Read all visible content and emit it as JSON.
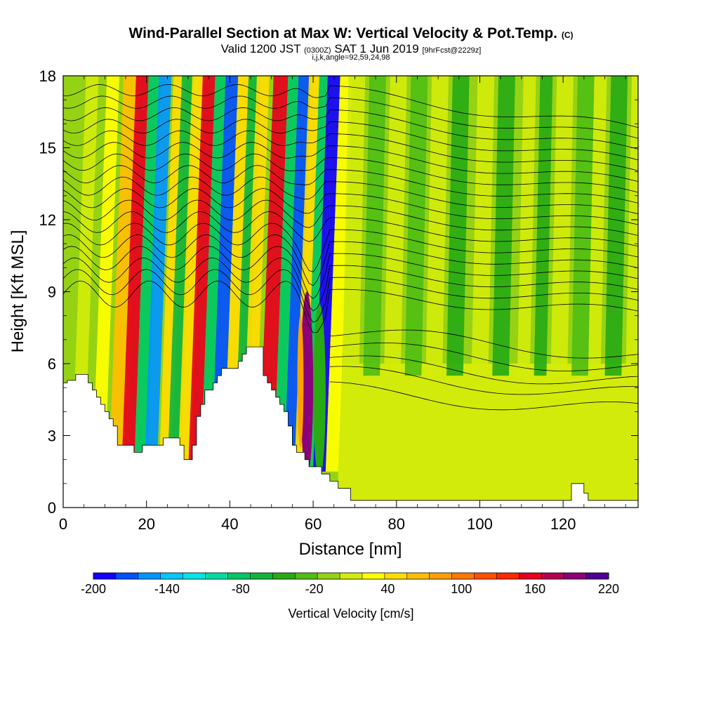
{
  "header": {
    "title": "Wind-Parallel Section at Max W: Vertical Velocity & Pot.Temp.",
    "title_mark": "(C)",
    "valid_prefix": "Valid 1200 JST",
    "valid_z": "(0300Z)",
    "valid_date": "SAT 1 Jun 2019",
    "forecast": "[9hrFcst@2229z]",
    "indices": "i,j,k,angle=92,59,24,98"
  },
  "chart_data": {
    "type": "heatmap",
    "xlabel": "Distance [nm]",
    "ylabel": "Height [Kft MSL]",
    "xlim": [
      0,
      138
    ],
    "ylim": [
      0,
      18
    ],
    "x_ticks": [
      "0",
      "20",
      "40",
      "60",
      "80",
      "100",
      "120"
    ],
    "y_ticks": [
      "0",
      "3",
      "6",
      "9",
      "12",
      "15",
      "18"
    ],
    "grid": false,
    "colorbar": {
      "title": "Vertical Velocity [cm/s]",
      "min": -200,
      "max": 220,
      "step": 20,
      "labels": [
        "-200",
        "-140",
        "-80",
        "-20",
        "40",
        "100",
        "160",
        "220"
      ],
      "colors": [
        "#1400ff",
        "#0050ff",
        "#0096ff",
        "#00c8ff",
        "#00e6e6",
        "#00dca0",
        "#00c864",
        "#10b43c",
        "#28aa14",
        "#50be14",
        "#96d214",
        "#d2eb0a",
        "#ffff00",
        "#ffdc00",
        "#ffbe00",
        "#ffa000",
        "#ff7800",
        "#ff5000",
        "#ff2800",
        "#e6001e",
        "#b40050",
        "#8c0078",
        "#500096"
      ]
    },
    "velocity_bands": [
      {
        "x": 2,
        "width": 3,
        "w": 30
      },
      {
        "x": 7,
        "width": 3,
        "w": 40
      },
      {
        "x": 11,
        "width": 4,
        "w": 90
      },
      {
        "x": 14,
        "width": 3,
        "w": 190
      },
      {
        "x": 17,
        "width": 3,
        "w": -80
      },
      {
        "x": 19.5,
        "width": 3,
        "w": -160
      },
      {
        "x": 23,
        "width": 3,
        "w": 70
      },
      {
        "x": 25,
        "width": 3,
        "w": -60
      },
      {
        "x": 27.5,
        "width": 3,
        "w": 60
      },
      {
        "x": 30,
        "width": 3,
        "w": 180
      },
      {
        "x": 33,
        "width": 3,
        "w": -80
      },
      {
        "x": 35.5,
        "width": 3,
        "w": -170
      },
      {
        "x": 38.5,
        "width": 3,
        "w": 60
      },
      {
        "x": 41,
        "width": 3,
        "w": -60
      },
      {
        "x": 43,
        "width": 3,
        "w": 70
      },
      {
        "x": 47,
        "width": 3.5,
        "w": 190
      },
      {
        "x": 50.5,
        "width": 3,
        "w": -80
      },
      {
        "x": 53,
        "width": 3,
        "w": -170
      },
      {
        "x": 55.5,
        "width": 2.5,
        "w": 60
      },
      {
        "x": 58,
        "width": 2.5,
        "w": -80
      },
      {
        "x": 60,
        "width": 3,
        "w": -200
      },
      {
        "x": 63,
        "width": 3,
        "w": 40
      },
      {
        "x": 67,
        "width": 4,
        "w": 20
      },
      {
        "x": 72,
        "width": 4,
        "w": -20
      },
      {
        "x": 77,
        "width": 4,
        "w": 20
      },
      {
        "x": 82,
        "width": 4,
        "w": -20
      },
      {
        "x": 87,
        "width": 4,
        "w": 20
      },
      {
        "x": 92,
        "width": 4,
        "w": -30
      },
      {
        "x": 98,
        "width": 4,
        "w": 30
      },
      {
        "x": 103,
        "width": 4,
        "w": -30
      },
      {
        "x": 109,
        "width": 3,
        "w": 20
      },
      {
        "x": 113,
        "width": 3,
        "w": -30
      },
      {
        "x": 117,
        "width": 4,
        "w": 30
      },
      {
        "x": 122,
        "width": 4,
        "w": -20
      },
      {
        "x": 126,
        "width": 3,
        "w": 30
      },
      {
        "x": 130,
        "width": 4,
        "w": -40
      },
      {
        "x": 135,
        "width": 3,
        "w": 20
      }
    ],
    "lower_features": [
      {
        "x": 57,
        "width": 3,
        "y0": 1.3,
        "y1": 9.0,
        "w": 220
      },
      {
        "x": 56.2,
        "width": 1.5,
        "y0": 2.5,
        "y1": 8.0,
        "w": 100
      },
      {
        "x": 60,
        "width": 3,
        "y0": 1.2,
        "y1": 8.5,
        "w": -40
      }
    ],
    "terrain": [
      [
        0,
        5.2
      ],
      [
        1,
        5.2
      ],
      [
        1,
        5.3
      ],
      [
        3,
        5.3
      ],
      [
        3,
        5.55
      ],
      [
        6,
        5.55
      ],
      [
        6,
        5.2
      ],
      [
        7,
        5.2
      ],
      [
        7,
        4.9
      ],
      [
        8,
        4.9
      ],
      [
        8,
        4.6
      ],
      [
        9,
        4.6
      ],
      [
        9,
        4.3
      ],
      [
        10,
        4.3
      ],
      [
        10,
        4.0
      ],
      [
        11,
        4.0
      ],
      [
        11,
        3.7
      ],
      [
        12,
        3.7
      ],
      [
        12,
        3.4
      ],
      [
        13,
        3.4
      ],
      [
        13,
        2.6
      ],
      [
        17,
        2.6
      ],
      [
        17,
        2.3
      ],
      [
        19,
        2.3
      ],
      [
        19,
        2.6
      ],
      [
        24,
        2.6
      ],
      [
        24,
        2.9
      ],
      [
        28,
        2.9
      ],
      [
        28,
        2.6
      ],
      [
        29,
        2.6
      ],
      [
        29,
        2.0
      ],
      [
        31,
        2.0
      ],
      [
        31,
        2.6
      ],
      [
        32,
        2.6
      ],
      [
        32,
        3.8
      ],
      [
        33,
        3.8
      ],
      [
        33,
        4.3
      ],
      [
        34,
        4.3
      ],
      [
        34,
        4.9
      ],
      [
        36,
        4.9
      ],
      [
        36,
        5.2
      ],
      [
        37,
        5.2
      ],
      [
        37,
        5.5
      ],
      [
        38,
        5.5
      ],
      [
        38,
        5.8
      ],
      [
        42,
        5.8
      ],
      [
        42,
        6.1
      ],
      [
        43,
        6.1
      ],
      [
        43,
        6.4
      ],
      [
        44,
        6.4
      ],
      [
        44,
        6.7
      ],
      [
        48,
        6.7
      ],
      [
        48,
        5.5
      ],
      [
        49,
        5.5
      ],
      [
        49,
        5.2
      ],
      [
        50,
        5.2
      ],
      [
        50,
        4.9
      ],
      [
        51,
        4.9
      ],
      [
        51,
        4.6
      ],
      [
        52,
        4.6
      ],
      [
        52,
        4.3
      ],
      [
        53,
        4.3
      ],
      [
        53,
        4.0
      ],
      [
        54,
        4.0
      ],
      [
        54,
        3.4
      ],
      [
        55,
        3.4
      ],
      [
        55,
        2.6
      ],
      [
        56,
        2.6
      ],
      [
        56,
        2.3
      ],
      [
        58,
        2.3
      ],
      [
        58,
        2.0
      ],
      [
        59,
        2.0
      ],
      [
        59,
        1.7
      ],
      [
        62,
        1.7
      ],
      [
        62,
        1.4
      ],
      [
        64,
        1.4
      ],
      [
        64,
        1.1
      ],
      [
        66,
        1.1
      ],
      [
        66,
        0.8
      ],
      [
        69,
        0.8
      ],
      [
        69,
        0.3
      ],
      [
        122,
        0.3
      ],
      [
        122,
        1.0
      ],
      [
        125,
        1.0
      ],
      [
        125,
        0.6
      ],
      [
        126,
        0.6
      ],
      [
        126,
        0.3
      ],
      [
        138,
        0.3
      ]
    ],
    "contours": [
      {
        "base": 8.9,
        "step": 0
      },
      {
        "base": 9.4,
        "step": 1
      },
      {
        "base": 9.9,
        "step": 2
      },
      {
        "base": 10.4,
        "step": 3
      },
      {
        "base": 10.9,
        "step": 4
      },
      {
        "base": 11.4,
        "step": 5
      },
      {
        "base": 11.9,
        "step": 6
      },
      {
        "base": 12.4,
        "step": 7
      },
      {
        "base": 12.9,
        "step": 8
      },
      {
        "base": 13.4,
        "step": 9
      },
      {
        "base": 13.9,
        "step": 10
      },
      {
        "base": 14.4,
        "step": 11
      },
      {
        "base": 14.9,
        "step": 12
      },
      {
        "base": 15.4,
        "step": 13
      },
      {
        "base": 15.9,
        "step": 14
      },
      {
        "base": 16.4,
        "step": 15
      },
      {
        "base": 16.9,
        "step": 16
      },
      {
        "base": 17.4,
        "step": 17
      }
    ]
  }
}
